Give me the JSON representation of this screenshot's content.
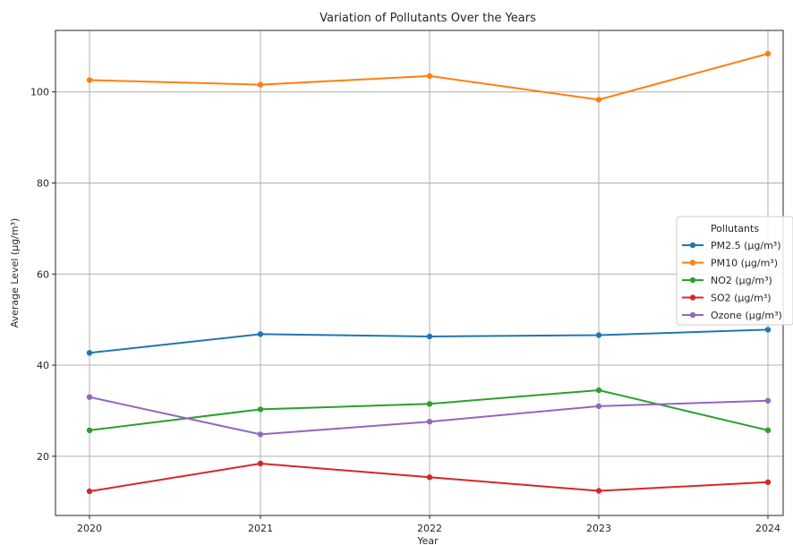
{
  "chart_data": {
    "type": "line",
    "title": "Variation of Pollutants Over the Years",
    "xlabel": "Year",
    "ylabel": "Average Level (µg/m³)",
    "categories": [
      "2020",
      "2021",
      "2022",
      "2023",
      "2024"
    ],
    "ylim": [
      7,
      113.5
    ],
    "yticks": [
      20,
      40,
      60,
      80,
      100
    ],
    "grid": true,
    "legend": {
      "title": "Pollutants",
      "placement": "center-right"
    },
    "series": [
      {
        "name": "PM2.5 (µg/m³)",
        "color": "#1f77b4",
        "values": [
          42.7,
          46.8,
          46.3,
          46.6,
          47.8
        ]
      },
      {
        "name": "PM10 (µg/m³)",
        "color": "#ff7f0e",
        "values": [
          102.6,
          101.6,
          103.5,
          98.3,
          108.4
        ]
      },
      {
        "name": "NO2 (µg/m³)",
        "color": "#2ca02c",
        "values": [
          25.7,
          30.3,
          31.5,
          34.5,
          25.7
        ]
      },
      {
        "name": "SO2 (µg/m³)",
        "color": "#d62728",
        "values": [
          12.3,
          18.4,
          15.4,
          12.4,
          14.3
        ]
      },
      {
        "name": "Ozone (µg/m³)",
        "color": "#9467bd",
        "values": [
          33.0,
          24.8,
          27.6,
          31.0,
          32.2
        ]
      }
    ]
  }
}
